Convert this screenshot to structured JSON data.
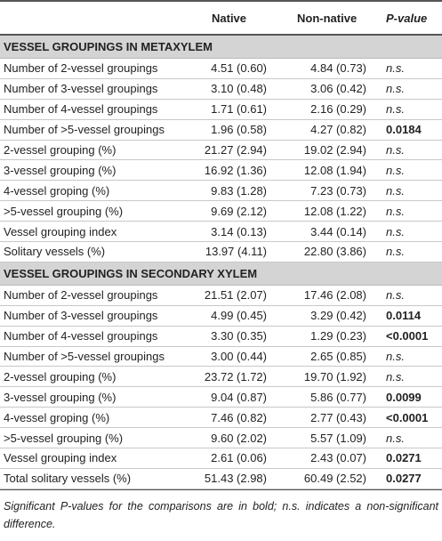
{
  "table": {
    "header": [
      "Native",
      "Non-native",
      "P-value"
    ],
    "sections": [
      {
        "title": "VESSEL GROUPINGS IN METAXYLEM",
        "rows": [
          {
            "cells": [
              "Number of 2-vessel groupings",
              "4.51 (0.60)",
              "4.84 (0.73)",
              "n.s."
            ],
            "significant": false
          },
          {
            "cells": [
              "Number of 3-vessel groupings",
              "3.10 (0.48)",
              "3.06 (0.42)",
              "n.s."
            ],
            "significant": false
          },
          {
            "cells": [
              "Number of 4-vessel groupings",
              "1.71 (0.61)",
              "2.16 (0.29)",
              "n.s."
            ],
            "significant": false
          },
          {
            "cells": [
              "Number of >5-vessel groupings",
              "1.96 (0.58)",
              "4.27 (0.82)",
              "0.0184"
            ],
            "significant": true
          },
          {
            "cells": [
              "2-vessel grouping (%)",
              "21.27 (2.94)",
              "19.02 (2.94)",
              "n.s."
            ],
            "significant": false
          },
          {
            "cells": [
              "3-vessel grouping (%)",
              "16.92 (1.36)",
              "12.08 (1.94)",
              "n.s."
            ],
            "significant": false
          },
          {
            "cells": [
              "4-vessel groping (%)",
              "9.83 (1.28)",
              "7.23 (0.73)",
              "n.s."
            ],
            "significant": false
          },
          {
            "cells": [
              ">5-vessel grouping (%)",
              "9.69 (2.12)",
              "12.08 (1.22)",
              "n.s."
            ],
            "significant": false
          },
          {
            "cells": [
              "Vessel grouping index",
              "3.14 (0.13)",
              "3.44 (0.14)",
              "n.s."
            ],
            "significant": false
          },
          {
            "cells": [
              "Solitary vessels (%)",
              "13.97 (4.11)",
              "22.80 (3.86)",
              "n.s."
            ],
            "significant": false
          }
        ]
      },
      {
        "title": "VESSEL GROUPINGS IN SECONDARY XYLEM",
        "rows": [
          {
            "cells": [
              "Number of 2-vessel groupings",
              "21.51 (2.07)",
              "17.46 (2.08)",
              "n.s."
            ],
            "significant": false
          },
          {
            "cells": [
              "Number of 3-vessel groupings",
              "4.99 (0.45)",
              "3.29 (0.42)",
              "0.0114"
            ],
            "significant": true
          },
          {
            "cells": [
              "Number of 4-vessel groupings",
              "3.30 (0.35)",
              "1.29 (0.23)",
              "<0.0001"
            ],
            "significant": true
          },
          {
            "cells": [
              "Number of >5-vessel groupings",
              "3.00 (0.44)",
              "2.65 (0.85)",
              "n.s."
            ],
            "significant": false
          },
          {
            "cells": [
              "2-vessel grouping (%)",
              "23.72 (1.72)",
              "19.70 (1.92)",
              "n.s."
            ],
            "significant": false
          },
          {
            "cells": [
              "3-vessel grouping (%)",
              "9.04 (0.87)",
              "5.86 (0.77)",
              "0.0099"
            ],
            "significant": true
          },
          {
            "cells": [
              "4-vessel groping (%)",
              "7.46 (0.82)",
              "2.77 (0.43)",
              "<0.0001"
            ],
            "significant": true
          },
          {
            "cells": [
              ">5-vessel grouping (%)",
              "9.60 (2.02)",
              "5.57 (1.09)",
              "n.s."
            ],
            "significant": false
          },
          {
            "cells": [
              "Vessel grouping index",
              "2.61 (0.06)",
              "2.43 (0.07)",
              "0.0271"
            ],
            "significant": true
          },
          {
            "cells": [
              "Total solitary vessels (%)",
              "51.43 (2.98)",
              "60.49 (2.52)",
              "0.0277"
            ],
            "significant": true
          }
        ]
      }
    ],
    "footnote": "Significant P-values for the comparisons are in bold; n.s. indicates a non-significant difference."
  }
}
